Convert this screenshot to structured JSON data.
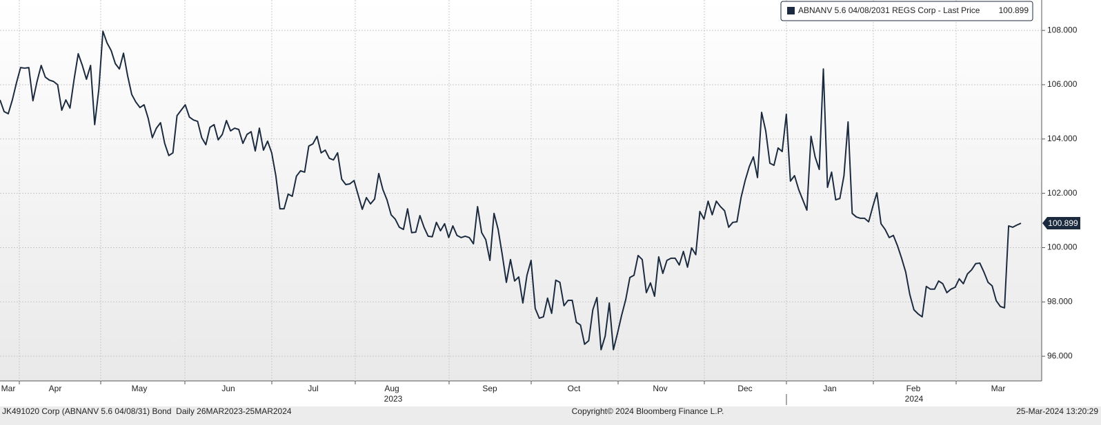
{
  "chart_data": {
    "type": "line",
    "series": [
      {
        "name": "ABNANV 5.6 04/08/2031 REGS Corp - Last Price",
        "color": "#1b2a3e",
        "values": [
          105.44,
          105.01,
          104.93,
          105.44,
          106.07,
          106.63,
          106.61,
          106.63,
          105.41,
          106.12,
          106.71,
          106.28,
          106.17,
          106.12,
          106.0,
          105.06,
          105.44,
          105.14,
          106.2,
          107.14,
          106.71,
          106.2,
          106.71,
          104.53,
          105.82,
          107.97,
          107.54,
          107.26,
          106.78,
          106.58,
          107.16,
          106.33,
          105.64,
          105.36,
          105.16,
          105.26,
          104.76,
          104.05,
          104.4,
          104.6,
          103.84,
          103.39,
          103.49,
          104.86,
          105.06,
          105.26,
          104.81,
          104.7,
          104.65,
          104.05,
          103.79,
          104.43,
          104.53,
          103.97,
          104.17,
          104.68,
          104.3,
          104.4,
          104.35,
          103.84,
          104.17,
          104.27,
          103.56,
          104.4,
          103.59,
          103.92,
          103.49,
          102.65,
          101.43,
          101.43,
          101.97,
          101.89,
          102.63,
          102.83,
          102.78,
          103.74,
          103.82,
          104.1,
          103.49,
          103.59,
          103.29,
          103.23,
          103.49,
          102.52,
          102.32,
          102.35,
          102.47,
          101.94,
          101.41,
          101.84,
          101.61,
          101.79,
          102.73,
          102.14,
          101.76,
          101.21,
          101.05,
          100.75,
          100.67,
          101.43,
          100.55,
          100.57,
          101.18,
          100.75,
          100.42,
          100.4,
          100.93,
          100.62,
          100.88,
          100.37,
          100.8,
          100.45,
          100.37,
          100.42,
          100.37,
          100.14,
          101.51,
          100.55,
          100.29,
          99.53,
          101.26,
          100.67,
          99.74,
          98.72,
          99.56,
          98.77,
          98.92,
          97.96,
          98.98,
          99.53,
          97.76,
          97.4,
          97.45,
          98.14,
          97.58,
          98.8,
          98.72,
          97.86,
          98.06,
          98.06,
          97.25,
          97.15,
          96.44,
          96.57,
          97.71,
          98.16,
          96.24,
          96.74,
          97.96,
          96.24,
          96.85,
          97.51,
          98.09,
          98.9,
          98.98,
          99.71,
          99.56,
          98.34,
          98.7,
          98.21,
          99.66,
          99.05,
          99.53,
          99.61,
          99.61,
          99.36,
          99.86,
          99.28,
          99.99,
          99.74,
          101.33,
          101.05,
          101.71,
          101.21,
          101.71,
          101.51,
          101.36,
          100.75,
          100.93,
          100.95,
          101.84,
          102.47,
          102.98,
          103.34,
          102.58,
          104.98,
          104.3,
          103.11,
          103.03,
          103.67,
          103.54,
          104.91,
          102.45,
          102.65,
          102.14,
          101.76,
          101.38,
          104.1,
          103.34,
          102.88,
          106.58,
          102.22,
          102.78,
          101.76,
          101.81,
          102.65,
          104.63,
          101.26,
          101.13,
          101.08,
          101.08,
          100.95,
          101.51,
          102.02,
          100.88,
          100.67,
          100.37,
          100.45,
          100.07,
          99.61,
          99.1,
          98.27,
          97.71,
          97.56,
          97.45,
          98.57,
          98.47,
          98.47,
          98.77,
          98.67,
          98.34,
          98.47,
          98.54,
          98.85,
          98.67,
          99.03,
          99.18,
          99.41,
          99.43,
          99.1,
          98.72,
          98.59,
          98.04,
          97.83,
          97.78,
          100.8,
          100.75,
          100.83,
          100.899
        ]
      }
    ],
    "x_labels": [
      "Mar",
      "Apr",
      "May",
      "Jun",
      "Jul",
      "Aug",
      "Sep",
      "Oct",
      "Nov",
      "Dec",
      "Jan",
      "Feb",
      "Mar"
    ],
    "year_labels": [
      "2023",
      "2024"
    ],
    "ylim": [
      95.09,
      109.12
    ],
    "yticks": [
      {
        "value": 96,
        "label": "96.000"
      },
      {
        "value": 98,
        "label": "98.000"
      },
      {
        "value": 100,
        "label": "100.000"
      },
      {
        "value": 102,
        "label": "102.000"
      },
      {
        "value": 104,
        "label": "104.000"
      },
      {
        "value": 106,
        "label": "106.000"
      },
      {
        "value": 108,
        "label": "108.000"
      }
    ],
    "grid": true,
    "legend": "top-right",
    "footer_left": "JK491020 Corp (ABNANV 5.6 04/08/31) Bond  Daily 26MAR2023-25MAR2024",
    "footer_center": "Copyright© 2024 Bloomberg Finance L.P.",
    "footer_right": "25-Mar-2024 13:20:29"
  }
}
